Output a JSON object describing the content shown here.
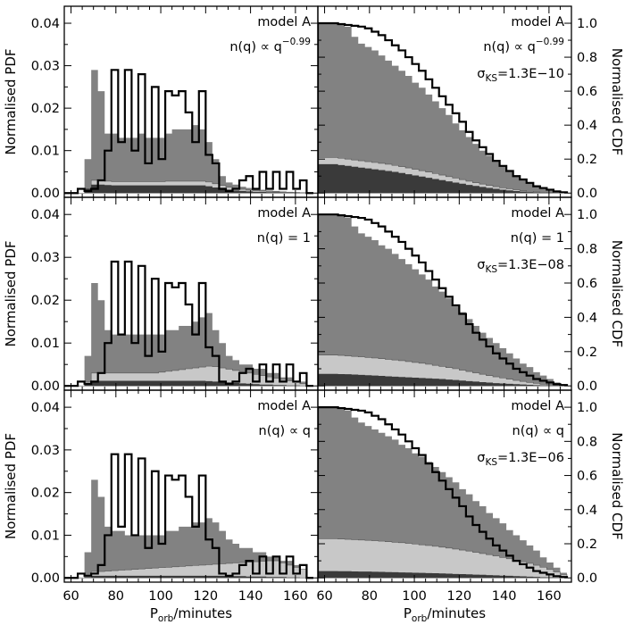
{
  "chart_data": {
    "type": "histogram-grid",
    "rows": 3,
    "columns": 2,
    "x_axis": {
      "range": [
        57,
        170
      ],
      "ticks": [
        60,
        80,
        100,
        120,
        140,
        160
      ],
      "tick_labels": [
        "60",
        "80",
        "100",
        "120",
        "140",
        "160"
      ],
      "label_main": "P",
      "label_sub": "orb",
      "label_rest": "/minutes"
    },
    "pdf_axis": {
      "label": "Normalised PDF",
      "range": [
        -0.001,
        0.044
      ],
      "ticks": [
        0.0,
        0.01,
        0.02,
        0.03,
        0.04
      ],
      "tick_labels": [
        "0.00",
        "0.01",
        "0.02",
        "0.03",
        "0.04"
      ]
    },
    "cdf_axis": {
      "label": "Normalised CDF",
      "range": [
        -0.025,
        1.1
      ],
      "ticks": [
        0.0,
        0.2,
        0.4,
        0.6,
        0.8,
        1.0
      ],
      "tick_labels": [
        "0.0",
        "0.2",
        "0.4",
        "0.6",
        "0.8",
        "1.0"
      ]
    },
    "colors": {
      "medium": "#828282",
      "light": "#c8c8c8",
      "dark": "#3a3a3a",
      "outline": "#000000"
    },
    "bin_edges": [
      57,
      60,
      63,
      66,
      69,
      72,
      75,
      78,
      81,
      84,
      87,
      90,
      93,
      96,
      99,
      102,
      105,
      108,
      111,
      114,
      117,
      120,
      123,
      126,
      129,
      132,
      135,
      138,
      141,
      144,
      147,
      150,
      153,
      156,
      159,
      162,
      165,
      168
    ],
    "series_names": [
      "model distribution (medium grey)",
      "light grey component",
      "dark grey component",
      "observed sample (black outline)"
    ],
    "rows_data": [
      {
        "model": "model A",
        "nq_text": "n(q) ∝ q",
        "nq_exp": "−0.99",
        "ks_sym": "σ",
        "ks_sub": "KS",
        "ks_value": "=1.3E−10",
        "pdf_medium": [
          0,
          0,
          0,
          0.008,
          0.029,
          0.024,
          0.014,
          0.014,
          0.013,
          0.013,
          0.013,
          0.014,
          0.013,
          0.013,
          0.013,
          0.014,
          0.015,
          0.015,
          0.015,
          0.016,
          0.015,
          0.012,
          0.008,
          0.004,
          0.0025,
          0.002,
          0.0015,
          0.0012,
          0.001,
          0.0008,
          0.0006,
          0.0005,
          0.0004,
          0.0003,
          0.0002,
          0.0001,
          0
        ],
        "pdf_light": [
          0,
          0,
          0,
          0.001,
          0.003,
          0.003,
          0.0028,
          0.0027,
          0.0027,
          0.0027,
          0.0027,
          0.0027,
          0.0027,
          0.0027,
          0.0027,
          0.0028,
          0.0028,
          0.0028,
          0.0028,
          0.0028,
          0.0028,
          0.0026,
          0.0022,
          0.0018,
          0.0014,
          0.0011,
          0.0009,
          0.0007,
          0.0006,
          0.0005,
          0.0004,
          0.0003,
          0.0002,
          0.0002,
          0.0001,
          0.0001,
          0
        ],
        "pdf_dark": [
          0,
          0,
          0,
          0.001,
          0.002,
          0.002,
          0.0019,
          0.0018,
          0.0018,
          0.0018,
          0.0018,
          0.0018,
          0.0018,
          0.0018,
          0.0018,
          0.0018,
          0.0018,
          0.0018,
          0.0018,
          0.0018,
          0.0018,
          0.0016,
          0.0013,
          0.001,
          0.0008,
          0.0006,
          0.0005,
          0.0004,
          0.0003,
          0.0003,
          0.0002,
          0.0002,
          0.0001,
          0.0001,
          0.0001,
          0,
          0
        ],
        "pdf_obs": [
          0,
          0,
          0.001,
          0.0005,
          0.001,
          0.003,
          0.01,
          0.029,
          0.012,
          0.029,
          0.01,
          0.028,
          0.007,
          0.025,
          0.008,
          0.024,
          0.023,
          0.024,
          0.019,
          0.012,
          0.024,
          0.009,
          0.007,
          0.001,
          0.0005,
          0.001,
          0.003,
          0.004,
          0.001,
          0.005,
          0.001,
          0.005,
          0.001,
          0.005,
          0.001,
          0.003,
          0
        ],
        "cdf_medium": [
          1.0,
          1.0,
          1.0,
          0.995,
          0.98,
          0.92,
          0.88,
          0.86,
          0.84,
          0.81,
          0.78,
          0.75,
          0.72,
          0.69,
          0.65,
          0.62,
          0.58,
          0.54,
          0.5,
          0.46,
          0.41,
          0.37,
          0.33,
          0.29,
          0.25,
          0.22,
          0.19,
          0.16,
          0.13,
          0.1,
          0.08,
          0.06,
          0.04,
          0.03,
          0.02,
          0.01,
          0.005
        ],
        "cdf_light": [
          0.21,
          0.21,
          0.21,
          0.205,
          0.2,
          0.195,
          0.19,
          0.185,
          0.18,
          0.175,
          0.17,
          0.163,
          0.156,
          0.148,
          0.14,
          0.132,
          0.124,
          0.115,
          0.106,
          0.097,
          0.088,
          0.079,
          0.07,
          0.061,
          0.053,
          0.045,
          0.038,
          0.031,
          0.025,
          0.019,
          0.014,
          0.01,
          0.007,
          0.004,
          0.002,
          0.001,
          0
        ],
        "cdf_dark": [
          0.17,
          0.17,
          0.17,
          0.165,
          0.16,
          0.155,
          0.15,
          0.145,
          0.14,
          0.135,
          0.13,
          0.125,
          0.118,
          0.111,
          0.104,
          0.097,
          0.09,
          0.083,
          0.076,
          0.069,
          0.062,
          0.055,
          0.048,
          0.042,
          0.036,
          0.03,
          0.025,
          0.02,
          0.016,
          0.012,
          0.009,
          0.006,
          0.004,
          0.002,
          0.001,
          0,
          0
        ],
        "cdf_obs": [
          1.0,
          1.0,
          1.0,
          0.995,
          0.99,
          0.985,
          0.98,
          0.97,
          0.95,
          0.93,
          0.9,
          0.87,
          0.84,
          0.8,
          0.76,
          0.72,
          0.67,
          0.62,
          0.57,
          0.52,
          0.47,
          0.42,
          0.36,
          0.31,
          0.27,
          0.23,
          0.19,
          0.16,
          0.13,
          0.1,
          0.08,
          0.06,
          0.04,
          0.03,
          0.02,
          0.01,
          0.005
        ]
      },
      {
        "model": "model A",
        "nq_text": "n(q) = 1",
        "nq_exp": "",
        "ks_sym": "σ",
        "ks_sub": "KS",
        "ks_value": "=1.3E−08",
        "pdf_medium": [
          0,
          0,
          0,
          0.007,
          0.024,
          0.02,
          0.013,
          0.012,
          0.012,
          0.012,
          0.012,
          0.012,
          0.012,
          0.012,
          0.012,
          0.013,
          0.013,
          0.014,
          0.014,
          0.015,
          0.016,
          0.017,
          0.013,
          0.01,
          0.007,
          0.006,
          0.005,
          0.005,
          0.004,
          0.004,
          0.003,
          0.003,
          0.002,
          0.002,
          0.001,
          0.001,
          0
        ],
        "pdf_light": [
          0,
          0,
          0,
          0.001,
          0.003,
          0.003,
          0.003,
          0.003,
          0.003,
          0.003,
          0.003,
          0.003,
          0.003,
          0.003,
          0.0032,
          0.0034,
          0.0036,
          0.0038,
          0.004,
          0.0042,
          0.0044,
          0.0046,
          0.0045,
          0.0042,
          0.0039,
          0.0036,
          0.0033,
          0.003,
          0.0027,
          0.0024,
          0.0021,
          0.0018,
          0.0015,
          0.0012,
          0.0009,
          0.0005,
          0
        ],
        "pdf_dark": [
          0,
          0,
          0,
          0.0005,
          0.0012,
          0.0012,
          0.0012,
          0.0012,
          0.0012,
          0.0012,
          0.0012,
          0.0012,
          0.0012,
          0.0012,
          0.0012,
          0.0012,
          0.0012,
          0.0012,
          0.0012,
          0.0012,
          0.0012,
          0.0011,
          0.001,
          0.0009,
          0.0008,
          0.0007,
          0.0006,
          0.0005,
          0.0004,
          0.0003,
          0.0003,
          0.0002,
          0.0002,
          0.0001,
          0.0001,
          0,
          0
        ],
        "pdf_obs": [
          0,
          0,
          0.001,
          0.0005,
          0.001,
          0.003,
          0.01,
          0.029,
          0.012,
          0.029,
          0.01,
          0.028,
          0.007,
          0.025,
          0.008,
          0.024,
          0.023,
          0.024,
          0.019,
          0.012,
          0.024,
          0.009,
          0.007,
          0.001,
          0.0005,
          0.001,
          0.003,
          0.004,
          0.001,
          0.005,
          0.001,
          0.005,
          0.001,
          0.005,
          0.001,
          0.003,
          0
        ],
        "cdf_medium": [
          1.0,
          1.0,
          1.0,
          0.995,
          0.98,
          0.93,
          0.89,
          0.87,
          0.85,
          0.82,
          0.8,
          0.77,
          0.74,
          0.71,
          0.68,
          0.65,
          0.62,
          0.58,
          0.55,
          0.51,
          0.47,
          0.43,
          0.39,
          0.35,
          0.31,
          0.28,
          0.25,
          0.22,
          0.19,
          0.16,
          0.13,
          0.11,
          0.08,
          0.06,
          0.04,
          0.02,
          0.01
        ],
        "cdf_light": [
          0.18,
          0.18,
          0.18,
          0.178,
          0.175,
          0.172,
          0.169,
          0.166,
          0.163,
          0.159,
          0.155,
          0.151,
          0.147,
          0.142,
          0.137,
          0.132,
          0.126,
          0.12,
          0.114,
          0.107,
          0.1,
          0.092,
          0.084,
          0.076,
          0.068,
          0.06,
          0.053,
          0.046,
          0.039,
          0.032,
          0.026,
          0.02,
          0.015,
          0.01,
          0.006,
          0.003,
          0.001
        ],
        "cdf_dark": [
          0.07,
          0.07,
          0.07,
          0.069,
          0.068,
          0.066,
          0.064,
          0.062,
          0.06,
          0.058,
          0.056,
          0.054,
          0.052,
          0.05,
          0.048,
          0.046,
          0.044,
          0.042,
          0.04,
          0.037,
          0.034,
          0.031,
          0.028,
          0.025,
          0.022,
          0.019,
          0.016,
          0.014,
          0.012,
          0.01,
          0.008,
          0.006,
          0.004,
          0.003,
          0.002,
          0.001,
          0
        ],
        "cdf_obs": [
          1.0,
          1.0,
          1.0,
          0.995,
          0.99,
          0.985,
          0.98,
          0.97,
          0.95,
          0.93,
          0.9,
          0.87,
          0.84,
          0.8,
          0.76,
          0.72,
          0.67,
          0.62,
          0.57,
          0.52,
          0.47,
          0.42,
          0.36,
          0.31,
          0.27,
          0.23,
          0.19,
          0.16,
          0.13,
          0.1,
          0.08,
          0.06,
          0.04,
          0.03,
          0.02,
          0.01,
          0.005
        ]
      },
      {
        "model": "model A",
        "nq_text": "n(q) ∝ q",
        "nq_exp": "",
        "ks_sym": "σ",
        "ks_sub": "KS",
        "ks_value": "=1.3E−06",
        "pdf_medium": [
          0,
          0,
          0,
          0.006,
          0.023,
          0.019,
          0.012,
          0.011,
          0.011,
          0.01,
          0.01,
          0.01,
          0.01,
          0.01,
          0.01,
          0.011,
          0.011,
          0.012,
          0.012,
          0.013,
          0.013,
          0.014,
          0.013,
          0.011,
          0.009,
          0.008,
          0.007,
          0.007,
          0.006,
          0.006,
          0.005,
          0.005,
          0.004,
          0.004,
          0.003,
          0.002,
          0
        ],
        "pdf_light": [
          0,
          0,
          0,
          0.0005,
          0.0015,
          0.0015,
          0.0016,
          0.0017,
          0.0018,
          0.0019,
          0.002,
          0.0021,
          0.0022,
          0.0023,
          0.0024,
          0.0025,
          0.0026,
          0.0027,
          0.0028,
          0.0029,
          0.003,
          0.0031,
          0.0032,
          0.0033,
          0.0034,
          0.0035,
          0.0036,
          0.0037,
          0.0038,
          0.0039,
          0.004,
          0.004,
          0.0035,
          0.003,
          0.0025,
          0.002,
          0
        ],
        "pdf_dark": [
          0,
          0,
          0,
          0.0002,
          0.0005,
          0.0005,
          0.0005,
          0.0005,
          0.0005,
          0.0005,
          0.0005,
          0.0005,
          0.0005,
          0.0005,
          0.0005,
          0.0005,
          0.0005,
          0.0005,
          0.0005,
          0.0005,
          0.0005,
          0.0005,
          0.0005,
          0.0005,
          0.0004,
          0.0004,
          0.0004,
          0.0003,
          0.0003,
          0.0003,
          0.0002,
          0.0002,
          0.0002,
          0.0001,
          0.0001,
          0,
          0
        ],
        "pdf_obs": [
          0,
          0,
          0.001,
          0.0005,
          0.001,
          0.003,
          0.01,
          0.029,
          0.012,
          0.029,
          0.01,
          0.028,
          0.007,
          0.025,
          0.008,
          0.024,
          0.023,
          0.024,
          0.019,
          0.012,
          0.024,
          0.009,
          0.007,
          0.001,
          0.0005,
          0.001,
          0.003,
          0.004,
          0.001,
          0.005,
          0.001,
          0.005,
          0.001,
          0.005,
          0.001,
          0.003,
          0
        ],
        "cdf_medium": [
          1.0,
          1.0,
          1.0,
          0.995,
          0.98,
          0.94,
          0.91,
          0.89,
          0.87,
          0.85,
          0.83,
          0.81,
          0.78,
          0.76,
          0.73,
          0.71,
          0.68,
          0.65,
          0.62,
          0.59,
          0.56,
          0.52,
          0.49,
          0.45,
          0.42,
          0.38,
          0.35,
          0.32,
          0.28,
          0.25,
          0.22,
          0.19,
          0.16,
          0.12,
          0.09,
          0.06,
          0.03
        ],
        "cdf_light": [
          0.23,
          0.23,
          0.23,
          0.228,
          0.226,
          0.224,
          0.222,
          0.22,
          0.218,
          0.215,
          0.212,
          0.209,
          0.206,
          0.202,
          0.198,
          0.194,
          0.19,
          0.185,
          0.18,
          0.175,
          0.169,
          0.163,
          0.157,
          0.15,
          0.143,
          0.136,
          0.128,
          0.12,
          0.112,
          0.103,
          0.094,
          0.085,
          0.074,
          0.062,
          0.049,
          0.035,
          0.02
        ],
        "cdf_dark": [
          0.04,
          0.04,
          0.04,
          0.039,
          0.039,
          0.038,
          0.037,
          0.037,
          0.036,
          0.035,
          0.034,
          0.033,
          0.032,
          0.031,
          0.03,
          0.029,
          0.028,
          0.027,
          0.026,
          0.025,
          0.023,
          0.022,
          0.021,
          0.019,
          0.018,
          0.016,
          0.015,
          0.013,
          0.012,
          0.01,
          0.009,
          0.007,
          0.006,
          0.004,
          0.003,
          0.002,
          0.001
        ],
        "cdf_obs": [
          1.0,
          1.0,
          1.0,
          0.995,
          0.99,
          0.985,
          0.98,
          0.97,
          0.95,
          0.93,
          0.9,
          0.87,
          0.84,
          0.8,
          0.76,
          0.72,
          0.67,
          0.62,
          0.57,
          0.52,
          0.47,
          0.42,
          0.36,
          0.31,
          0.27,
          0.23,
          0.19,
          0.16,
          0.13,
          0.1,
          0.08,
          0.06,
          0.04,
          0.03,
          0.02,
          0.01,
          0.005
        ]
      }
    ]
  }
}
